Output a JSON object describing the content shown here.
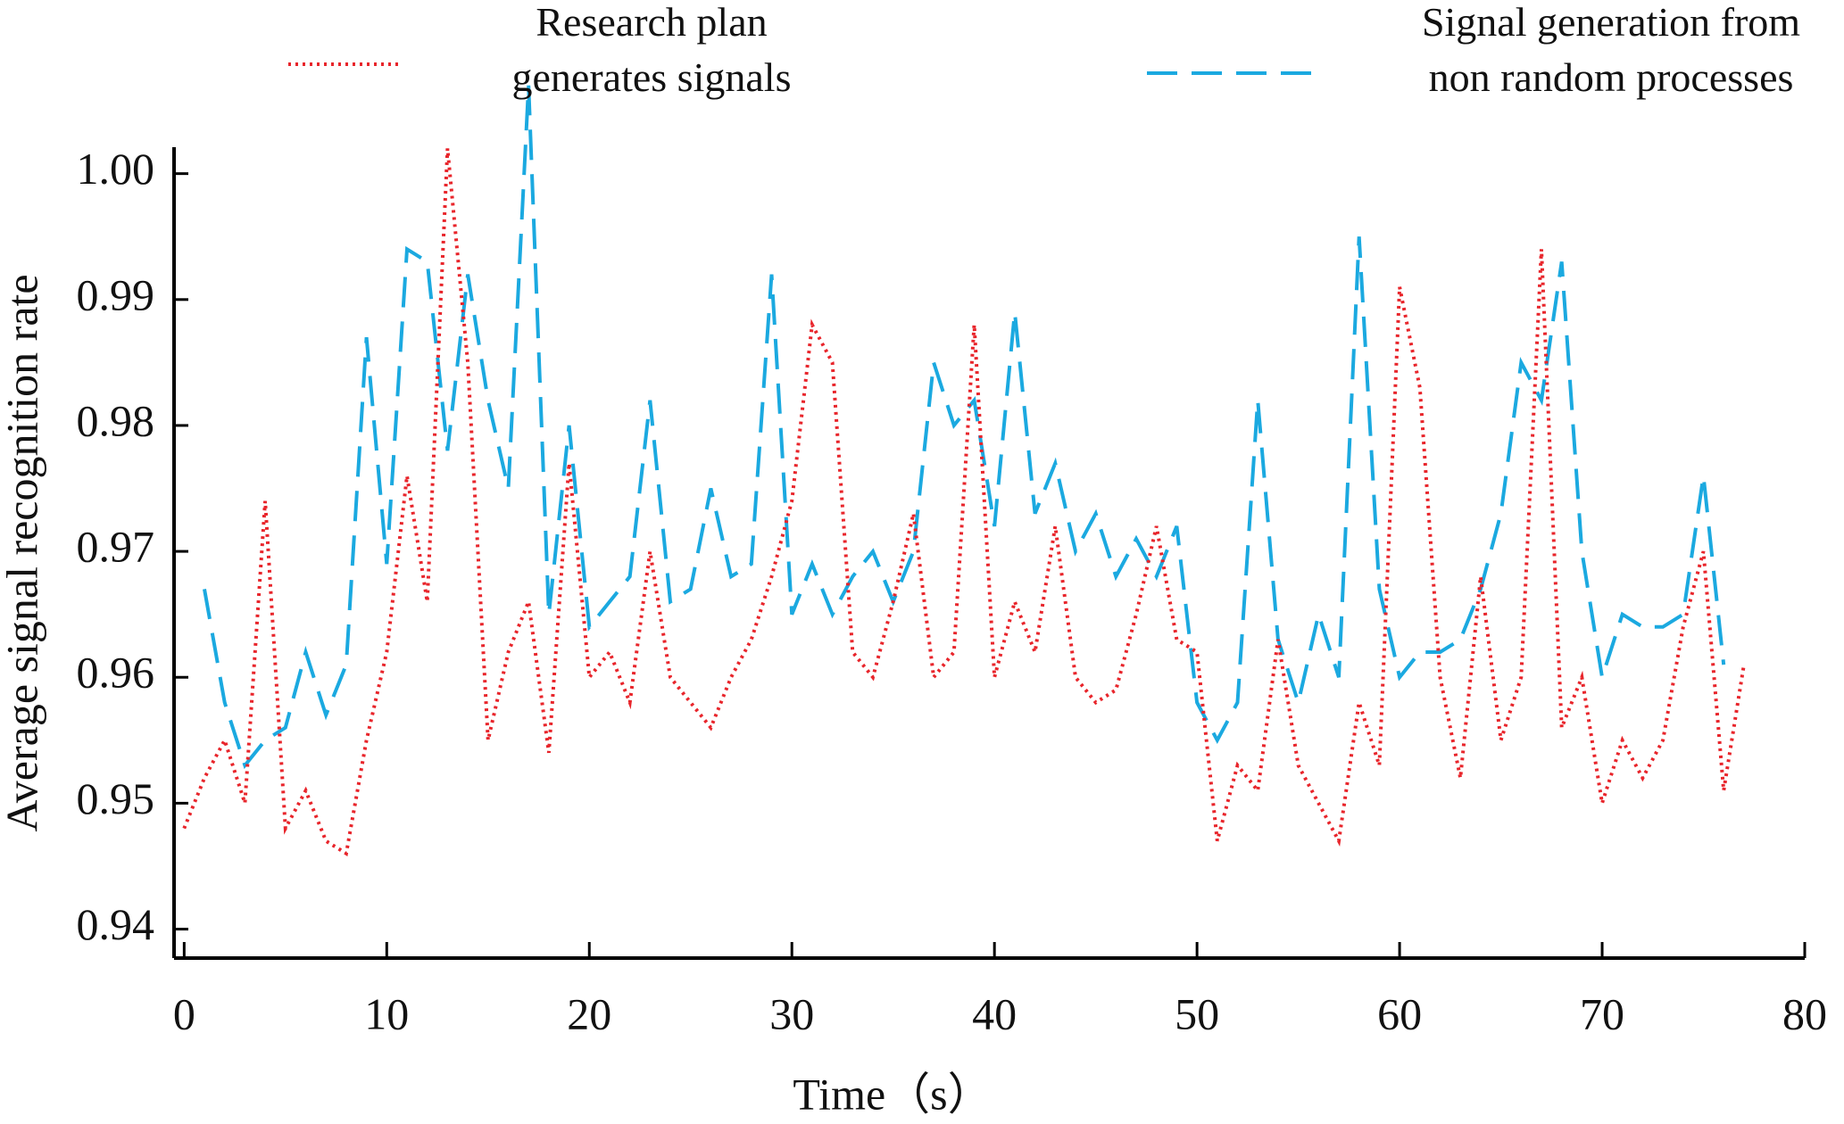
{
  "chart_data": {
    "type": "line",
    "x_label": "Time（s）",
    "y_label": "Average signal recognition rate",
    "x": [
      0,
      1,
      2,
      3,
      4,
      5,
      6,
      7,
      8,
      9,
      10,
      11,
      12,
      13,
      14,
      15,
      16,
      17,
      18,
      19,
      20,
      21,
      22,
      23,
      24,
      25,
      26,
      27,
      28,
      29,
      30,
      31,
      32,
      33,
      34,
      35,
      36,
      37,
      38,
      39,
      40,
      41,
      42,
      43,
      44,
      45,
      46,
      47,
      48,
      49,
      50,
      51,
      52,
      53,
      54,
      55,
      56,
      57,
      58,
      59,
      60,
      61,
      62,
      63,
      64,
      65,
      66,
      67,
      68,
      69,
      70,
      71,
      72,
      73,
      74,
      75,
      76,
      77
    ],
    "series": [
      {
        "name": "Research plan generates signals",
        "color": "#e8252b",
        "style": "dotted",
        "values": [
          0.948,
          0.952,
          0.955,
          0.95,
          0.974,
          0.948,
          0.951,
          0.947,
          0.946,
          0.955,
          0.962,
          0.976,
          0.966,
          1.002,
          0.985,
          0.955,
          0.962,
          0.966,
          0.954,
          0.977,
          0.96,
          0.962,
          0.958,
          0.97,
          0.96,
          0.958,
          0.956,
          0.96,
          0.963,
          0.968,
          0.974,
          0.988,
          0.985,
          0.962,
          0.96,
          0.966,
          0.973,
          0.96,
          0.962,
          0.988,
          0.96,
          0.966,
          0.962,
          0.972,
          0.96,
          0.958,
          0.959,
          0.965,
          0.972,
          0.963,
          0.962,
          0.947,
          0.953,
          0.951,
          0.963,
          0.953,
          0.95,
          0.947,
          0.958,
          0.953,
          0.991,
          0.983,
          0.96,
          0.952,
          0.968,
          0.955,
          0.96,
          0.994,
          0.956,
          0.96,
          0.95,
          0.955,
          0.952,
          0.955,
          0.964,
          0.97,
          0.951,
          0.961
        ]
      },
      {
        "name": "Signal generation from non random processes",
        "color": "#1ba9e0",
        "style": "dashed",
        "values": [
          null,
          0.967,
          0.958,
          0.953,
          0.955,
          0.956,
          0.962,
          0.957,
          0.961,
          0.987,
          0.969,
          0.994,
          0.993,
          0.978,
          0.992,
          0.982,
          0.975,
          1.007,
          0.965,
          0.98,
          0.964,
          0.966,
          0.968,
          0.982,
          0.966,
          0.967,
          0.975,
          0.968,
          0.969,
          0.992,
          0.965,
          0.969,
          0.965,
          0.968,
          0.97,
          0.966,
          0.97,
          0.985,
          0.98,
          0.982,
          0.972,
          0.989,
          0.973,
          0.977,
          0.97,
          0.973,
          0.968,
          0.971,
          0.968,
          0.972,
          0.958,
          0.955,
          0.958,
          0.982,
          0.963,
          0.958,
          0.965,
          0.96,
          0.995,
          0.967,
          0.96,
          0.962,
          0.962,
          0.963,
          0.967,
          0.973,
          0.985,
          0.982,
          0.993,
          0.97,
          0.96,
          0.965,
          0.964,
          0.964,
          0.965,
          0.976,
          0.961,
          null
        ]
      }
    ],
    "xlim": [
      -0.5,
      80
    ],
    "xticks": [
      0,
      10,
      20,
      30,
      40,
      50,
      60,
      70,
      80
    ],
    "ylim": [
      0.9377,
      1.0021
    ],
    "yticks": [
      0.94,
      0.95,
      0.96,
      0.97,
      0.98,
      0.99,
      {
        "value": 1.0,
        "label": "1.00"
      }
    ]
  }
}
